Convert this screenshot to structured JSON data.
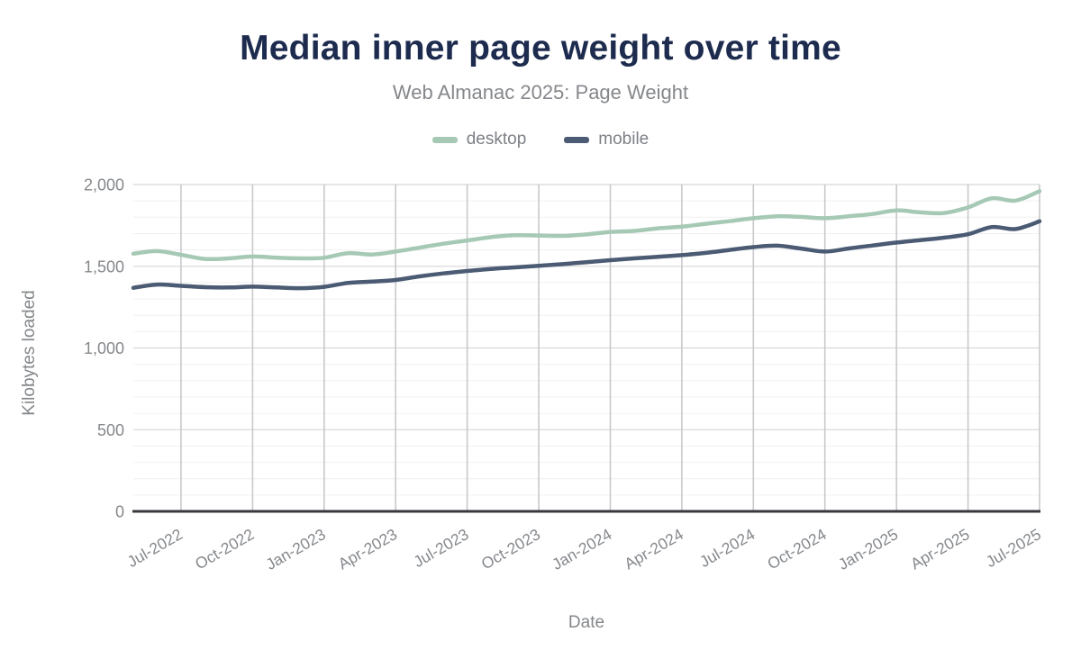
{
  "chart_data": {
    "type": "line",
    "title": "Median inner page weight over time",
    "subtitle": "Web Almanac 2025: Page Weight",
    "xlabel": "Date",
    "ylabel": "Kilobytes loaded",
    "ylim": [
      0,
      2000
    ],
    "legend_position": "top-center",
    "grid": {
      "vertical_at_xticks": true,
      "horizontal_major_step": 500,
      "horizontal_minor_step": 100
    },
    "x": [
      "May-2022",
      "Jun-2022",
      "Jul-2022",
      "Aug-2022",
      "Sep-2022",
      "Oct-2022",
      "Nov-2022",
      "Dec-2022",
      "Jan-2023",
      "Feb-2023",
      "Mar-2023",
      "Apr-2023",
      "May-2023",
      "Jun-2023",
      "Jul-2023",
      "Aug-2023",
      "Sep-2023",
      "Oct-2023",
      "Nov-2023",
      "Dec-2023",
      "Jan-2024",
      "Feb-2024",
      "Mar-2024",
      "Apr-2024",
      "May-2024",
      "Jun-2024",
      "Jul-2024",
      "Aug-2024",
      "Sep-2024",
      "Oct-2024",
      "Nov-2024",
      "Dec-2024",
      "Jan-2025",
      "Feb-2025",
      "Mar-2025",
      "Apr-2025",
      "May-2025",
      "Jun-2025",
      "Jul-2025"
    ],
    "xticks": [
      "Jul-2022",
      "Oct-2022",
      "Jan-2023",
      "Apr-2023",
      "Jul-2023",
      "Oct-2023",
      "Jan-2024",
      "Apr-2024",
      "Jul-2024",
      "Oct-2024",
      "Jan-2025",
      "Apr-2025",
      "Jul-2025"
    ],
    "yticks": [
      {
        "value": 0,
        "label": "0"
      },
      {
        "value": 500,
        "label": "500"
      },
      {
        "value": 1000,
        "label": "1,000"
      },
      {
        "value": 1500,
        "label": "1,500"
      },
      {
        "value": 2000,
        "label": "2,000"
      }
    ],
    "series": [
      {
        "name": "desktop",
        "color": "#a6c9b5",
        "values": [
          1577,
          1593,
          1570,
          1545,
          1548,
          1560,
          1552,
          1548,
          1552,
          1580,
          1572,
          1590,
          1614,
          1638,
          1658,
          1678,
          1690,
          1688,
          1686,
          1695,
          1710,
          1716,
          1732,
          1742,
          1760,
          1776,
          1794,
          1806,
          1802,
          1794,
          1806,
          1820,
          1842,
          1830,
          1826,
          1860,
          1916,
          1902,
          1960
        ]
      },
      {
        "name": "mobile",
        "color": "#4a5b73",
        "values": [
          1368,
          1388,
          1380,
          1372,
          1370,
          1375,
          1370,
          1366,
          1374,
          1398,
          1406,
          1416,
          1438,
          1456,
          1471,
          1484,
          1493,
          1503,
          1513,
          1525,
          1537,
          1548,
          1558,
          1568,
          1582,
          1600,
          1617,
          1626,
          1608,
          1590,
          1609,
          1627,
          1645,
          1660,
          1675,
          1696,
          1740,
          1728,
          1775
        ]
      }
    ]
  }
}
